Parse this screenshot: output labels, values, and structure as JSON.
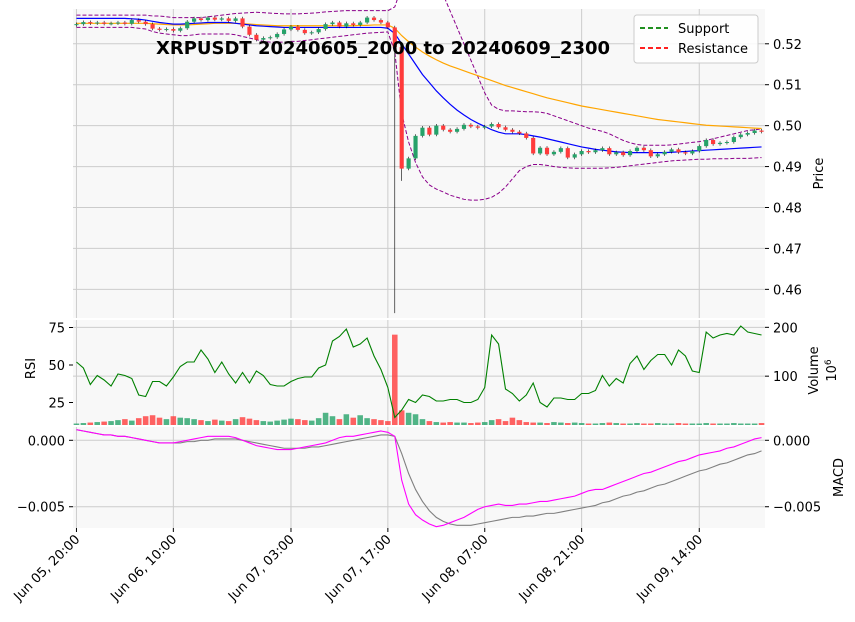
{
  "chart_data": {
    "type": "candlestick",
    "title": "XRPUSDT 20240605_2000 to 20240609_2300",
    "x_tick_labels": [
      "Jun 05, 20:00",
      "Jun 06, 10:00",
      "Jun 07, 03:00",
      "Jun 07, 17:00",
      "Jun 08, 07:00",
      "Jun 08, 21:00",
      "Jun 09, 14:00"
    ],
    "x_tick_index": [
      0,
      14,
      31,
      45,
      59,
      73,
      90
    ],
    "num_bars": 100,
    "price_panel": {
      "ylabel": "Price",
      "ylim": [
        0.453,
        0.5285
      ],
      "ticks": [
        0.46,
        0.47,
        0.48,
        0.49,
        0.5,
        0.51,
        0.52
      ],
      "tick_labels": [
        "0.46",
        "0.47",
        "0.48",
        "0.49",
        "0.50",
        "0.51",
        "0.52"
      ],
      "closes": [
        0.5248,
        0.5253,
        0.525,
        0.5252,
        0.5249,
        0.525,
        0.5252,
        0.5249,
        0.5258,
        0.5254,
        0.5248,
        0.5237,
        0.5234,
        0.5236,
        0.5232,
        0.5238,
        0.5254,
        0.5262,
        0.5258,
        0.5264,
        0.5259,
        0.5262,
        0.5256,
        0.5262,
        0.5242,
        0.5222,
        0.521,
        0.5214,
        0.5216,
        0.5224,
        0.5235,
        0.5242,
        0.5234,
        0.5226,
        0.5228,
        0.5236,
        0.5248,
        0.5252,
        0.5242,
        0.525,
        0.5246,
        0.5252,
        0.5264,
        0.5258,
        0.5252,
        0.524,
        0.5192,
        0.4895,
        0.492,
        0.4975,
        0.4995,
        0.4978,
        0.5,
        0.499,
        0.4985,
        0.4992,
        0.5002,
        0.4998,
        0.4995,
        0.4998,
        0.5004,
        0.4996,
        0.499,
        0.4985,
        0.4981,
        0.497,
        0.4932,
        0.4946,
        0.493,
        0.4936,
        0.4945,
        0.4922,
        0.493,
        0.4938,
        0.4935,
        0.494,
        0.4945,
        0.493,
        0.4935,
        0.4928,
        0.4938,
        0.4946,
        0.494,
        0.4925,
        0.493,
        0.4936,
        0.4942,
        0.4935,
        0.4932,
        0.4938,
        0.495,
        0.4965,
        0.4955,
        0.4958,
        0.496,
        0.4972,
        0.4978,
        0.4982,
        0.4988,
        0.4985
      ],
      "low_spike": {
        "index": 46,
        "value": 0.4542
      },
      "bollinger_upper": [
        0.527,
        0.527,
        0.527,
        0.527,
        0.527,
        0.527,
        0.527,
        0.527,
        0.527,
        0.527,
        0.527,
        0.5268,
        0.5268,
        0.5266,
        0.5264,
        0.5264,
        0.5264,
        0.5264,
        0.5264,
        0.5266,
        0.5268,
        0.527,
        0.5272,
        0.5274,
        0.5275,
        0.5276,
        0.5277,
        0.5276,
        0.5275,
        0.5274,
        0.5273,
        0.5273,
        0.5273,
        0.5274,
        0.5275,
        0.5276,
        0.5278,
        0.5279,
        0.528,
        0.5281,
        0.5281,
        0.5281,
        0.5281,
        0.5281,
        0.5281,
        0.5281,
        0.529,
        0.534,
        0.538,
        0.539,
        0.539,
        0.538,
        0.536,
        0.532,
        0.528,
        0.524,
        0.52,
        0.516,
        0.512,
        0.508,
        0.505,
        0.504,
        0.5036,
        0.5036,
        0.5035,
        0.5034,
        0.5034,
        0.5033,
        0.503,
        0.5024,
        0.5018,
        0.5012,
        0.5006,
        0.5,
        0.4994,
        0.499,
        0.4986,
        0.498,
        0.4972,
        0.4964,
        0.4958,
        0.4954,
        0.4952,
        0.4952,
        0.4952,
        0.4952,
        0.4953,
        0.4955,
        0.4957,
        0.4959,
        0.4961,
        0.4964,
        0.4968,
        0.4972,
        0.4976,
        0.498,
        0.4984,
        0.4988,
        0.499,
        0.4992
      ],
      "bollinger_lower": [
        0.524,
        0.524,
        0.524,
        0.524,
        0.524,
        0.524,
        0.524,
        0.524,
        0.524,
        0.5238,
        0.5236,
        0.523,
        0.5226,
        0.5224,
        0.5222,
        0.522,
        0.522,
        0.5222,
        0.5224,
        0.5224,
        0.5224,
        0.5224,
        0.5224,
        0.5222,
        0.5218,
        0.5214,
        0.521,
        0.5206,
        0.5204,
        0.5204,
        0.5204,
        0.5206,
        0.5206,
        0.5208,
        0.521,
        0.5212,
        0.5214,
        0.5216,
        0.5218,
        0.522,
        0.5222,
        0.5224,
        0.5226,
        0.5227,
        0.5228,
        0.5229,
        0.518,
        0.503,
        0.496,
        0.491,
        0.4875,
        0.4855,
        0.4845,
        0.4838,
        0.483,
        0.4825,
        0.482,
        0.4818,
        0.4818,
        0.482,
        0.4825,
        0.4835,
        0.485,
        0.487,
        0.489,
        0.49,
        0.4905,
        0.4905,
        0.4903,
        0.49,
        0.4898,
        0.4897,
        0.4896,
        0.4896,
        0.4896,
        0.4896,
        0.4896,
        0.4897,
        0.4898,
        0.49,
        0.4902,
        0.4904,
        0.4906,
        0.4908,
        0.491,
        0.4912,
        0.4914,
        0.4915,
        0.4916,
        0.4917,
        0.4918,
        0.4918,
        0.4919,
        0.4919,
        0.4919,
        0.492,
        0.492,
        0.492,
        0.4921,
        0.4922
      ],
      "sma_fast_blue": [
        0.5262,
        0.5262,
        0.5262,
        0.5262,
        0.5262,
        0.5262,
        0.5262,
        0.5262,
        0.5261,
        0.526,
        0.5258,
        0.5255,
        0.5252,
        0.525,
        0.5248,
        0.5248,
        0.5249,
        0.525,
        0.5251,
        0.5252,
        0.5252,
        0.5252,
        0.5252,
        0.525,
        0.5248,
        0.5246,
        0.5244,
        0.5243,
        0.5242,
        0.5241,
        0.524,
        0.524,
        0.524,
        0.524,
        0.524,
        0.524,
        0.524,
        0.524,
        0.524,
        0.524,
        0.524,
        0.524,
        0.524,
        0.524,
        0.524,
        0.5238,
        0.5225,
        0.52,
        0.5175,
        0.515,
        0.5125,
        0.5105,
        0.5085,
        0.5068,
        0.5052,
        0.5038,
        0.5026,
        0.5015,
        0.5006,
        0.4998,
        0.499,
        0.4984,
        0.498,
        0.498,
        0.498,
        0.4978,
        0.4975,
        0.4972,
        0.4968,
        0.4964,
        0.496,
        0.4956,
        0.4952,
        0.4948,
        0.4945,
        0.4942,
        0.494,
        0.4938,
        0.4936,
        0.4935,
        0.4934,
        0.4934,
        0.4934,
        0.4934,
        0.4934,
        0.4934,
        0.4935,
        0.4936,
        0.4937,
        0.4938,
        0.4939,
        0.494,
        0.4941,
        0.4942,
        0.4943,
        0.4944,
        0.4945,
        0.4946,
        0.4947,
        0.4948
      ],
      "ema_slow_orange": [
        0.525,
        0.525,
        0.525,
        0.525,
        0.525,
        0.525,
        0.525,
        0.525,
        0.525,
        0.525,
        0.525,
        0.5249,
        0.5248,
        0.5247,
        0.5246,
        0.5246,
        0.5246,
        0.5247,
        0.5248,
        0.5249,
        0.525,
        0.525,
        0.525,
        0.525,
        0.5249,
        0.5248,
        0.5247,
        0.5246,
        0.5245,
        0.5244,
        0.5244,
        0.5244,
        0.5244,
        0.5244,
        0.5244,
        0.5244,
        0.5244,
        0.5244,
        0.5244,
        0.5244,
        0.5244,
        0.5245,
        0.5245,
        0.5246,
        0.5246,
        0.5246,
        0.5238,
        0.522,
        0.5205,
        0.5192,
        0.518,
        0.517,
        0.5161,
        0.5153,
        0.5146,
        0.514,
        0.5134,
        0.5128,
        0.5122,
        0.5116,
        0.511,
        0.5104,
        0.5098,
        0.5093,
        0.5088,
        0.5083,
        0.5078,
        0.5073,
        0.5068,
        0.5064,
        0.506,
        0.5056,
        0.5052,
        0.5048,
        0.5045,
        0.5042,
        0.5039,
        0.5036,
        0.5033,
        0.503,
        0.5027,
        0.5024,
        0.5021,
        0.5018,
        0.5015,
        0.5013,
        0.5011,
        0.5009,
        0.5007,
        0.5005,
        0.5003,
        0.5001,
        0.5,
        0.4999,
        0.4998,
        0.4997,
        0.4996,
        0.4995,
        0.4994,
        0.4993
      ]
    },
    "legend": {
      "placement": "top-right",
      "entries": [
        {
          "label": "Support",
          "color": "#008000",
          "style": "dashed"
        },
        {
          "label": "Resistance",
          "color": "#ff0000",
          "style": "dashed"
        }
      ]
    },
    "rsi_panel": {
      "ylabel": "RSI",
      "ylim": [
        10,
        80
      ],
      "ticks": [
        25,
        50,
        75
      ],
      "tick_labels": [
        "25",
        "50",
        "75"
      ],
      "values": [
        52,
        48,
        37,
        43,
        40,
        36,
        44,
        43,
        41,
        30,
        29,
        39,
        39,
        36,
        42,
        49,
        52,
        52,
        60,
        54,
        45,
        52,
        44,
        38,
        45,
        38,
        46,
        43,
        37,
        36,
        36,
        39,
        41,
        42,
        42,
        48,
        50,
        66,
        69,
        74,
        62,
        64,
        68,
        56,
        47,
        35,
        15,
        20,
        27,
        25,
        30,
        29,
        26,
        26,
        27,
        27,
        25,
        25,
        27,
        35,
        70,
        64,
        34,
        31,
        26,
        30,
        38,
        25,
        22,
        28,
        28,
        27,
        27,
        31,
        31,
        33,
        43,
        36,
        41,
        38,
        51,
        56,
        47,
        53,
        57,
        57,
        50,
        60,
        56,
        46,
        45,
        72,
        68,
        70,
        71,
        70,
        76,
        72,
        71,
        70
      ]
    },
    "volume_panel": {
      "ylabel": "Volume",
      "scale_label": "10^6",
      "ylim": [
        0,
        215
      ],
      "ticks": [
        100,
        200
      ],
      "tick_labels": [
        "100",
        "200"
      ],
      "values": [
        3,
        4,
        5,
        6,
        7,
        8,
        10,
        12,
        9,
        14,
        18,
        20,
        15,
        12,
        18,
        15,
        14,
        12,
        10,
        8,
        11,
        9,
        8,
        12,
        16,
        13,
        10,
        8,
        7,
        9,
        11,
        13,
        12,
        10,
        9,
        14,
        25,
        18,
        12,
        22,
        15,
        20,
        14,
        12,
        10,
        8,
        185,
        30,
        25,
        22,
        12,
        8,
        6,
        5,
        6,
        5,
        5,
        4,
        5,
        6,
        10,
        12,
        8,
        15,
        10,
        6,
        5,
        5,
        4,
        6,
        5,
        4,
        5,
        4,
        3,
        3,
        4,
        5,
        4,
        3,
        3,
        4,
        3,
        3,
        4,
        3,
        3,
        4,
        3,
        3,
        3,
        4,
        3,
        3,
        3,
        4,
        3,
        3,
        3,
        4
      ],
      "up_color": "#26a269",
      "down_color": "#ff3b3b"
    },
    "macd_panel": {
      "ylabel": "MACD",
      "left_ticks": [
        0.0,
        -0.005
      ],
      "left_tick_labels": [
        "0.000",
        "−0.005"
      ],
      "right_ticks": [
        0.0,
        -0.005
      ],
      "right_tick_labels": [
        "0.000",
        "−0.005"
      ],
      "ylim": [
        -0.0066,
        0.001
      ],
      "macd_magenta": [
        0.0008,
        0.0007,
        0.0006,
        0.0005,
        0.0004,
        0.0004,
        0.0003,
        0.0003,
        0.0002,
        0.0001,
        0.0,
        -0.0001,
        -0.0002,
        -0.0002,
        -0.0002,
        -0.0001,
        0.0,
        0.0001,
        0.0002,
        0.0003,
        0.0003,
        0.0003,
        0.0003,
        0.0002,
        0.0,
        -0.0002,
        -0.0004,
        -0.0005,
        -0.0006,
        -0.0007,
        -0.0007,
        -0.0007,
        -0.0006,
        -0.0005,
        -0.0004,
        -0.0003,
        -0.0002,
        0.0,
        0.0002,
        0.0003,
        0.0003,
        0.0004,
        0.0005,
        0.0006,
        0.0007,
        0.0006,
        0.0003,
        -0.003,
        -0.0048,
        -0.0056,
        -0.006,
        -0.0063,
        -0.0065,
        -0.0064,
        -0.0062,
        -0.006,
        -0.0058,
        -0.0055,
        -0.0052,
        -0.005,
        -0.0049,
        -0.0048,
        -0.0049,
        -0.0049,
        -0.0048,
        -0.0048,
        -0.0047,
        -0.0046,
        -0.0046,
        -0.0045,
        -0.0044,
        -0.0043,
        -0.0042,
        -0.004,
        -0.0038,
        -0.0037,
        -0.0037,
        -0.0035,
        -0.0033,
        -0.0031,
        -0.0029,
        -0.0027,
        -0.0025,
        -0.0024,
        -0.0022,
        -0.002,
        -0.0018,
        -0.0016,
        -0.0015,
        -0.0013,
        -0.0011,
        -0.001,
        -0.0009,
        -0.0008,
        -0.0006,
        -0.0005,
        -0.0003,
        -0.0001,
        0.0001,
        0.0002
      ],
      "signal_gray": [
        0.0008,
        0.0007,
        0.0006,
        0.0005,
        0.0004,
        0.0004,
        0.0003,
        0.0003,
        0.0002,
        0.0001,
        0.0,
        -0.0001,
        -0.0002,
        -0.0002,
        -0.0002,
        -0.0002,
        -0.0001,
        -0.0001,
        0.0,
        0.0,
        0.0001,
        0.0001,
        0.0001,
        0.0001,
        0.0,
        -0.0001,
        -0.0002,
        -0.0003,
        -0.0004,
        -0.0005,
        -0.0006,
        -0.0006,
        -0.0006,
        -0.0006,
        -0.0005,
        -0.0005,
        -0.0004,
        -0.0003,
        -0.0002,
        -0.0001,
        0.0,
        0.0001,
        0.0002,
        0.0003,
        0.0004,
        0.0004,
        0.0003,
        -0.001,
        -0.0025,
        -0.0037,
        -0.0046,
        -0.0053,
        -0.0058,
        -0.0061,
        -0.0063,
        -0.0064,
        -0.0064,
        -0.0064,
        -0.0063,
        -0.0062,
        -0.0061,
        -0.006,
        -0.0059,
        -0.0058,
        -0.0058,
        -0.0057,
        -0.0057,
        -0.0056,
        -0.0055,
        -0.0055,
        -0.0054,
        -0.0053,
        -0.0052,
        -0.0051,
        -0.005,
        -0.0049,
        -0.0047,
        -0.0046,
        -0.0044,
        -0.0042,
        -0.0041,
        -0.0039,
        -0.0038,
        -0.0036,
        -0.0034,
        -0.0033,
        -0.0031,
        -0.0029,
        -0.0027,
        -0.0025,
        -0.0023,
        -0.0022,
        -0.002,
        -0.0018,
        -0.0017,
        -0.0015,
        -0.0013,
        -0.0011,
        -0.001,
        -0.0008
      ]
    },
    "colors": {
      "up": "#26a269",
      "down": "#ff3b3b",
      "bollinger": "#8b008b",
      "sma_blue": "#0000ff",
      "ema_orange": "#ffa500",
      "rsi": "#008000",
      "macd": "#ff00ff",
      "signal": "#808080",
      "panel_bg": "#f8f8f8",
      "grid": "#cccccc"
    },
    "grid": true
  }
}
